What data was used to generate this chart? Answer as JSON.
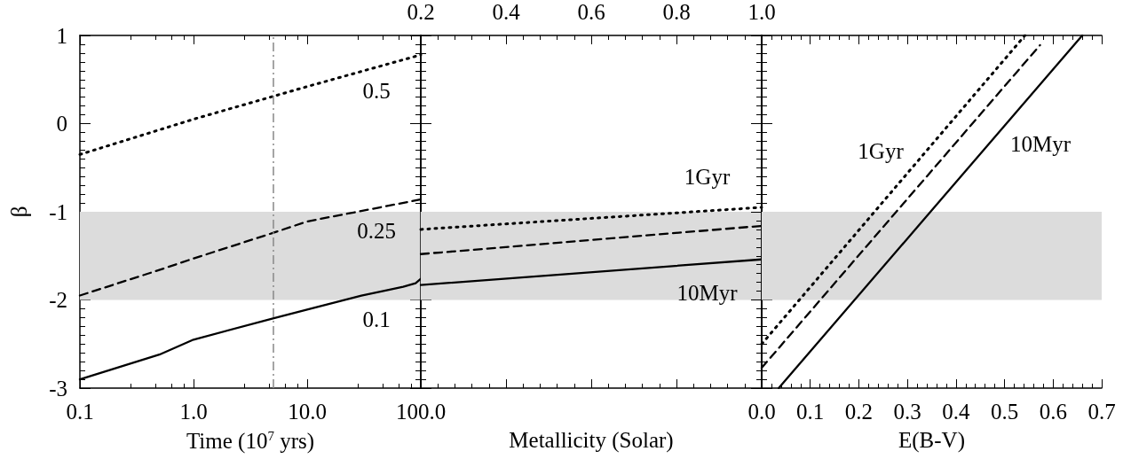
{
  "chart_data": [
    {
      "type": "line",
      "xlabel": "Time (10$^{7}$ yrs)",
      "ylabel": "β",
      "log": "x",
      "xlim": [
        0.1,
        100
      ],
      "xticks": [
        0.1,
        {
          "value": 1,
          "label": "1.0"
        },
        {
          "value": 10,
          "label": "10.0"
        },
        {
          "value": 100,
          "label": "100.0"
        }
      ],
      "ylim": [
        -3,
        1
      ],
      "yticks": [
        -3,
        -2,
        -1,
        0,
        1
      ],
      "marker": "none",
      "grid": false,
      "series": [
        {
          "color": "#000000",
          "line_style": "dotted",
          "x": [
            0.1,
            1,
            10,
            100
          ],
          "values": [
            -0.35,
            0.05,
            0.42,
            0.78
          ]
        },
        {
          "color": "#000000",
          "line_style": "dashed",
          "x": [
            0.1,
            0.5,
            1,
            5,
            10,
            100
          ],
          "values": [
            -1.95,
            -1.66,
            -1.53,
            -1.24,
            -1.11,
            -0.86
          ]
        },
        {
          "color": "#000000",
          "line_style": "solid",
          "x": [
            0.1,
            0.5,
            1,
            5,
            10,
            30,
            50,
            70,
            90,
            100
          ],
          "values": [
            -2.9,
            -2.62,
            -2.45,
            -2.21,
            -2.11,
            -1.95,
            -1.89,
            -1.85,
            -1.81,
            -1.76
          ]
        }
      ],
      "bands": [
        {
          "axis": "y",
          "from": -2,
          "to": -1,
          "color": "#dcdcdc"
        }
      ],
      "ref_lines": [
        {
          "axis": "x",
          "value": 5,
          "label": null,
          "color": "#888888",
          "line_style": "dashed"
        }
      ],
      "annotations": [
        "0.5",
        "0.25",
        "0.1"
      ]
    },
    {
      "type": "line",
      "xlabel": "Metallicity (Solar)",
      "xlim": [
        0.2,
        1.0
      ],
      "xticks": [
        0.2,
        0.4,
        0.6,
        0.8,
        {
          "value": 1,
          "label": "1.0"
        }
      ],
      "ylim": [
        -3,
        1
      ],
      "tick_labels": "x",
      "marker": "none",
      "grid": false,
      "series": [
        {
          "color": "#000000",
          "line_style": "dotted",
          "x": [
            0.2,
            1.0
          ],
          "values": [
            -1.2,
            -0.95
          ]
        },
        {
          "color": "#000000",
          "line_style": "dashed",
          "x": [
            0.2,
            1.0
          ],
          "values": [
            -1.48,
            -1.16
          ]
        },
        {
          "color": "#000000",
          "line_style": "solid",
          "x": [
            0.2,
            1.0
          ],
          "values": [
            -1.83,
            -1.54
          ]
        }
      ],
      "bands": [
        {
          "axis": "y",
          "from": -2,
          "to": -1,
          "color": "#dcdcdc"
        }
      ],
      "annotations": [
        "1Gyr",
        "10Myr"
      ]
    },
    {
      "type": "line",
      "xlabel": "E(B-V)",
      "xlim": [
        0,
        0.7
      ],
      "xticks": [
        {
          "value": 0,
          "label": "0.0"
        },
        0.1,
        0.2,
        0.3,
        0.4,
        0.5,
        0.6,
        0.7
      ],
      "ylim": [
        -3,
        1
      ],
      "tick_labels": "x",
      "marker": "none",
      "grid": false,
      "series": [
        {
          "color": "#000000",
          "line_style": "dotted",
          "x": [
            0,
            0.542
          ],
          "values": [
            -2.5,
            1.0
          ]
        },
        {
          "color": "#000000",
          "line_style": "dashed",
          "x": [
            0,
            0.573
          ],
          "values": [
            -2.77,
            0.89
          ]
        },
        {
          "color": "#000000",
          "line_style": "solid",
          "x": [
            0.035,
            0.66
          ],
          "values": [
            -3,
            1
          ]
        }
      ],
      "bands": [
        {
          "axis": "y",
          "from": -2,
          "to": -1,
          "color": "#dcdcdc"
        }
      ],
      "annotations": [
        "1Gyr",
        "10Myr"
      ]
    }
  ]
}
